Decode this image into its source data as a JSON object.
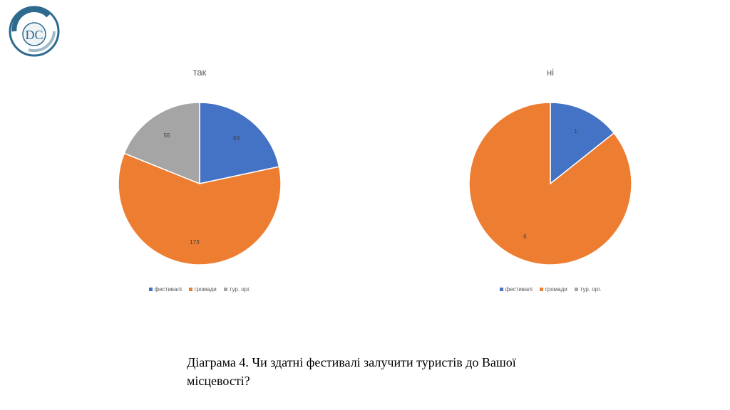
{
  "logo": {
    "letters": "DC"
  },
  "colors": {
    "festivals": "#4472C4",
    "communities": "#ED7D31",
    "tourorg": "#A5A5A5"
  },
  "chart_data": [
    {
      "type": "pie",
      "title": "так",
      "categories": [
        "фестивалі",
        "громади",
        "тур. орг."
      ],
      "values": [
        63,
        173,
        55
      ],
      "data_labels": [
        "63",
        "173",
        "55"
      ],
      "legend_position": "bottom"
    },
    {
      "type": "pie",
      "title": "ні",
      "categories": [
        "фестивалі",
        "громади",
        "тур. орг."
      ],
      "values": [
        1,
        6,
        0
      ],
      "data_labels": [
        "1",
        "6",
        ""
      ],
      "legend_position": "bottom"
    }
  ],
  "legend": [
    "фестивалі",
    "громади",
    "тур. орг."
  ],
  "caption": "Діаграма 4. Чи здатні фестивалі залучити туристів до Вашої місцевості?"
}
